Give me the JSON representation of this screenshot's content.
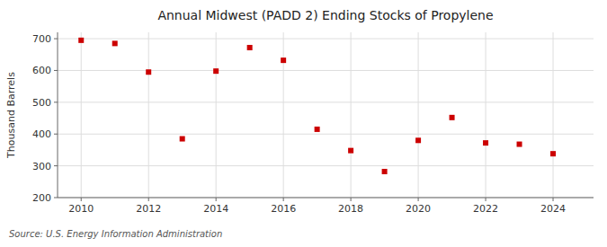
{
  "chart_data": {
    "type": "scatter",
    "title": "Annual Midwest (PADD 2) Ending Stocks of Propylene",
    "ylabel": "Thousand Barrels",
    "source": "Source: U.S. Energy Information Administration",
    "x": [
      2010,
      2011,
      2012,
      2013,
      2014,
      2015,
      2016,
      2017,
      2018,
      2019,
      2020,
      2021,
      2022,
      2023,
      2024
    ],
    "values": [
      695,
      685,
      595,
      385,
      598,
      672,
      632,
      415,
      348,
      282,
      380,
      452,
      372,
      368,
      338
    ],
    "color": "#cc0000",
    "marker": "square",
    "xlim": [
      2009.3,
      2025.2
    ],
    "xticks": [
      2010,
      2012,
      2014,
      2016,
      2018,
      2020,
      2022,
      2024
    ],
    "ylim": [
      200,
      720
    ],
    "yticks": [
      200,
      300,
      400,
      500,
      600,
      700
    ],
    "grid": true
  }
}
